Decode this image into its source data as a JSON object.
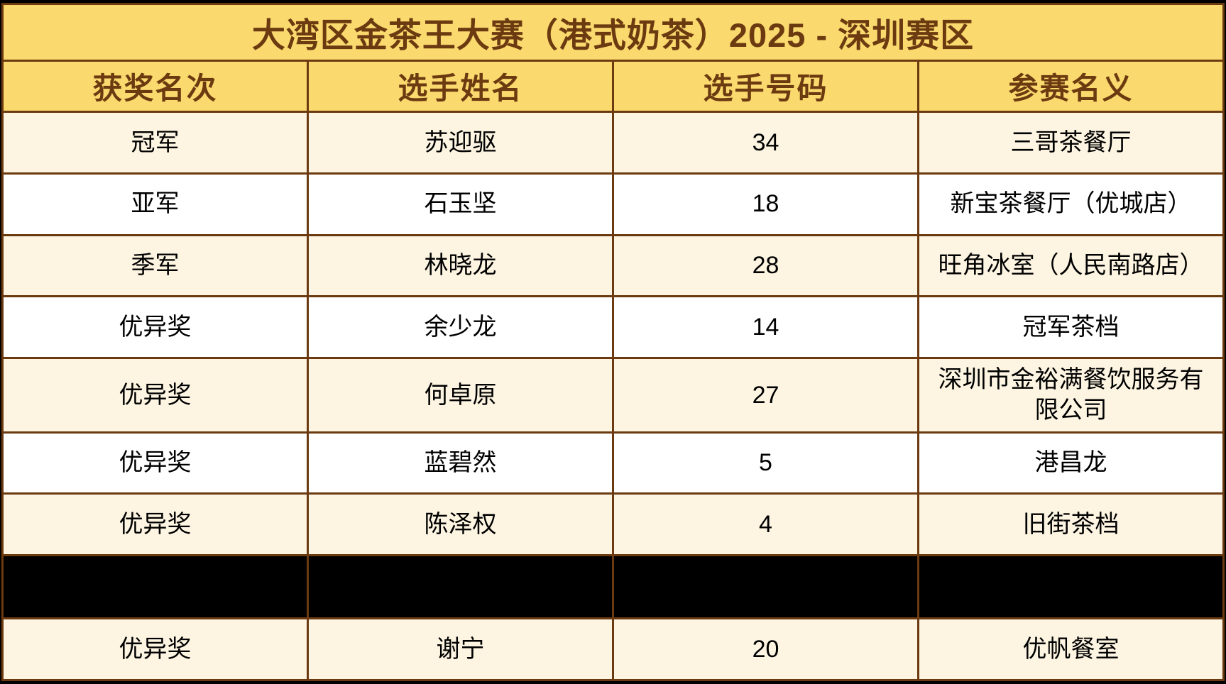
{
  "table": {
    "title": "大湾区金茶王大赛（港式奶茶）2025 - 深圳赛区",
    "columns": [
      "获奖名次",
      "选手姓名",
      "选手号码",
      "参赛名义"
    ],
    "rows": [
      {
        "rank": "冠军",
        "name": "苏迎驱",
        "number": "34",
        "entity": "三哥茶餐厅",
        "redacted": false
      },
      {
        "rank": "亚军",
        "name": "石玉坚",
        "number": "18",
        "entity": "新宝茶餐厅（优城店）",
        "redacted": false
      },
      {
        "rank": "季军",
        "name": "林晓龙",
        "number": "28",
        "entity": "旺角冰室（人民南路店）",
        "redacted": false
      },
      {
        "rank": "优异奖",
        "name": "余少龙",
        "number": "14",
        "entity": "冠军茶档",
        "redacted": false
      },
      {
        "rank": "优异奖",
        "name": "何卓原",
        "number": "27",
        "entity": "深圳市金裕满餐饮服务有限公司",
        "redacted": false
      },
      {
        "rank": "优异奖",
        "name": "蓝碧然",
        "number": "5",
        "entity": "港昌龙",
        "redacted": false
      },
      {
        "rank": "优异奖",
        "name": "陈泽权",
        "number": "4",
        "entity": "旧街茶档",
        "redacted": false
      },
      {
        "rank": "",
        "name": "",
        "number": "",
        "entity": "",
        "redacted": true
      },
      {
        "rank": "优异奖",
        "name": "谢宁",
        "number": "20",
        "entity": "优帆餐室",
        "redacted": false
      }
    ],
    "colors": {
      "yellow": "#fada6e",
      "brown_text": "#6c3a10",
      "border": "#6b3a10",
      "cream": "#fdf5e2",
      "white": "#ffffff",
      "black_row": "#000000",
      "cell_text": "#000000"
    }
  }
}
